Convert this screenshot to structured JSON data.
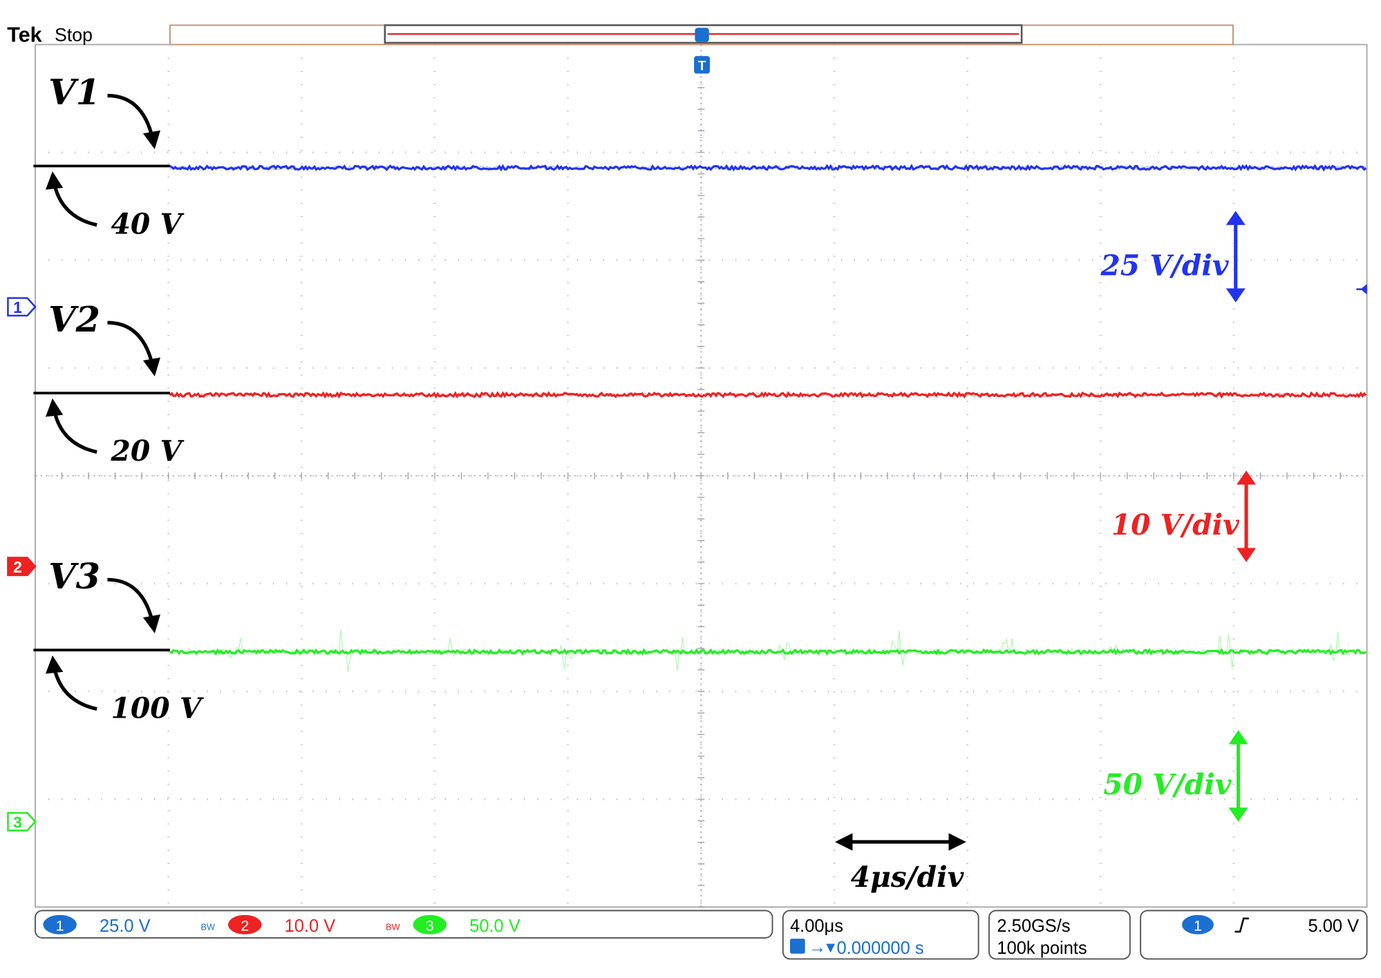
{
  "header": {
    "brand": "Tek",
    "status": "Stop",
    "trigger_marker": "T"
  },
  "traces": [
    {
      "label": "V1",
      "level": "40 V",
      "scale": "25 V/div",
      "channel": "1",
      "color": "#2233ee"
    },
    {
      "label": "V2",
      "level": "20 V",
      "scale": "10 V/div",
      "channel": "2",
      "color": "#ee2222"
    },
    {
      "label": "V3",
      "level": "100 V",
      "scale": "50 V/div",
      "channel": "3",
      "color": "#22ee22"
    }
  ],
  "time_scale": "4μs/div",
  "status_bar": {
    "channels": [
      {
        "channel": "1",
        "setting": "25.0 V"
      },
      {
        "channel": "2",
        "setting": "10.0 V"
      },
      {
        "channel": "3",
        "setting": "50.0 V"
      }
    ],
    "timebase": "4.00μs",
    "trigger_position": "0.000000 s",
    "sample_rate": "2.50GS/s",
    "record_length": "100k points",
    "trigger_channel": "1",
    "trigger_level": "5.00 V"
  }
}
